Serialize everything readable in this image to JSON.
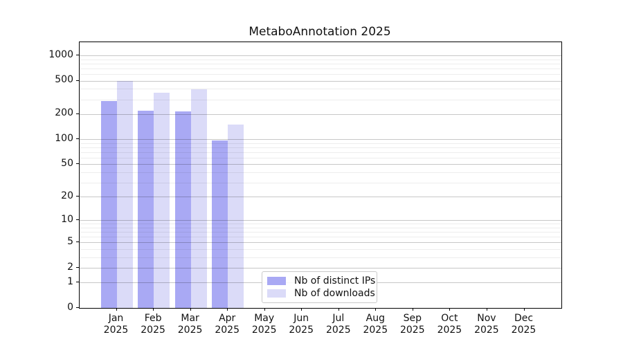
{
  "chart_data": {
    "type": "bar",
    "title": "MetaboAnnotation 2025",
    "categories": [
      "Jan",
      "Feb",
      "Mar",
      "Apr",
      "May",
      "Jun",
      "Jul",
      "Aug",
      "Sep",
      "Oct",
      "Nov",
      "Dec"
    ],
    "category_year": "2025",
    "series": [
      {
        "name": "Nb of distinct IPs",
        "color": "#a9a9f4",
        "values": [
          285,
          220,
          216,
          97,
          null,
          null,
          null,
          null,
          null,
          null,
          null,
          null
        ]
      },
      {
        "name": "Nb of downloads",
        "color": "#dbdbf8",
        "values": [
          500,
          360,
          395,
          150,
          null,
          null,
          null,
          null,
          null,
          null,
          null,
          null
        ]
      }
    ],
    "yscale": "log10(value+1)",
    "yticks": [
      0,
      1,
      2,
      5,
      10,
      20,
      50,
      100,
      200,
      500,
      1000
    ],
    "ylim": [
      0,
      1440
    ],
    "xlabel": "",
    "ylabel": "",
    "grid": true,
    "legend_position": "lower center"
  }
}
